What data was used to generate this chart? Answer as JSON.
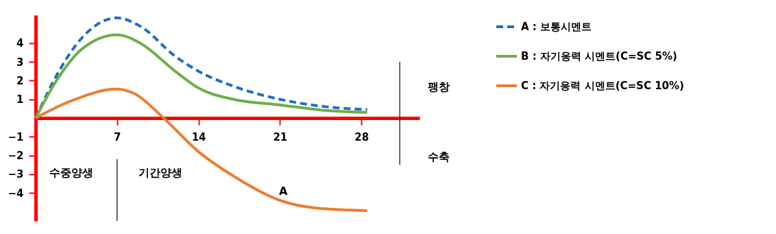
{
  "chart_data": {
    "type": "line",
    "x": [
      0,
      2,
      4,
      7,
      9,
      12,
      14,
      17,
      21,
      25,
      28.5
    ],
    "series": [
      {
        "name": "A : 보통시멘트",
        "color": "#1f6fc0",
        "line_style": "dashed",
        "values": [
          0,
          2.5,
          4.3,
          5.35,
          4.9,
          3.3,
          2.5,
          1.7,
          1.0,
          0.6,
          0.45
        ]
      },
      {
        "name": "B : 자기응력 시멘트(C=SC 5%)",
        "color": "#70ad47",
        "line_style": "solid",
        "values": [
          0,
          2.2,
          3.7,
          4.45,
          4.0,
          2.5,
          1.6,
          1.0,
          0.7,
          0.4,
          0.3
        ]
      },
      {
        "name": "C : 자기응력 시멘트(C=SC 10%)",
        "color": "#ed7d31",
        "line_style": "solid",
        "x": [
          0,
          3,
          7,
          8.5,
          11,
          14,
          17,
          21,
          24,
          28.5
        ],
        "values": [
          0,
          0.9,
          1.55,
          1.3,
          0,
          -1.8,
          -3.1,
          -4.4,
          -4.8,
          -4.95
        ]
      }
    ],
    "xlim": [
      0,
      33
    ],
    "xticks": [
      7,
      14,
      21,
      28
    ],
    "ylim": [
      -5.5,
      5.5
    ],
    "yticks": [
      -4,
      -3,
      -2,
      -1,
      1,
      2,
      3,
      4
    ],
    "grid": false,
    "legend": "right",
    "ref_lines": [
      {
        "axis": "x",
        "value": 7,
        "color": "#000000"
      },
      {
        "axis": "x",
        "value": 31.3,
        "color": "#000000"
      }
    ],
    "annotations": [
      "수중양생",
      "기간양생",
      "A",
      "팽창",
      "수축"
    ]
  }
}
